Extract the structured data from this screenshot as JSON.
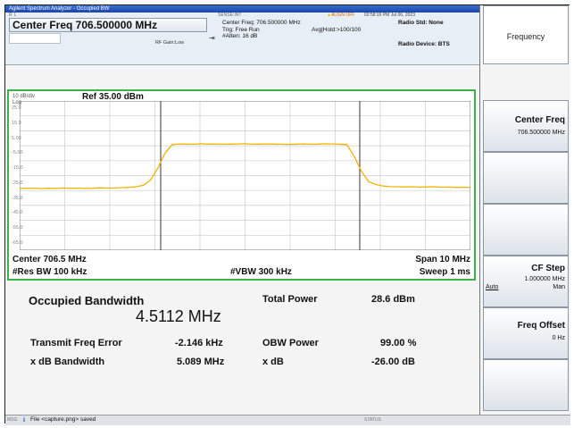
{
  "titlebar": {
    "text": "Agilent Spectrum Analyzer - Occupied BW"
  },
  "header": {
    "tiny_left": "RL",
    "tiny_mid": "SENSE:INT",
    "alert": "ALIGN OFF",
    "datetime": "02:58:16 PM Jul 06, 2023",
    "center_freq_display": "Center Freq 706.500000 MHz",
    "rf_gain": "RF Gain:Low",
    "center_freq_small": "Center Freq: 706.500000 MHz",
    "trig": "Trig: Free Run",
    "avg_hold": "Avg|Hold:>100/100",
    "atten": "#Atten: 16 dB",
    "radio_std": "Radio Std: None",
    "radio_device": "Radio Device: BTS"
  },
  "graph": {
    "scale": "10 dB/div",
    "ref": "Ref 35.00 dBm",
    "log": "Log",
    "y_ticks": [
      "25.0",
      "15.0",
      "5.00",
      "-5.00",
      "-15.0",
      "-25.0",
      "-35.0",
      "-45.0",
      "-55.0",
      "-65.0"
    ],
    "center": "Center  706.5 MHz",
    "span": "Span 10 MHz",
    "res_bw": "#Res BW  100 kHz",
    "vbw": "#VBW  300 kHz",
    "sweep": "Sweep  1 ms",
    "trace_color": "#f0b400",
    "trace_db": [
      -23.5,
      -23.6,
      -23.4,
      -23.7,
      -23.5,
      -23.6,
      -23.3,
      -23.5,
      -23.4,
      -23.6,
      -23.5,
      -23.2,
      -23.4,
      -23.3,
      -23.1,
      -22.9,
      -22.5,
      -21.5,
      -18,
      -10,
      0,
      5.8,
      6.2,
      6.1,
      6.0,
      6.3,
      6.1,
      6.2,
      6.0,
      6.1,
      6.2,
      6.3,
      6.0,
      6.1,
      6.2,
      6.1,
      6.0,
      5.9,
      6.1,
      6.2,
      6.0,
      6.1,
      6.3,
      6.2,
      6.0,
      5.8,
      -2,
      -12,
      -19,
      -21,
      -22,
      -22.4,
      -22.5,
      -22.6,
      -22.5,
      -22.7,
      -22.6,
      -22.5,
      -22.8,
      -22.7,
      -22.9,
      -22.8,
      -23.0
    ]
  },
  "results": {
    "obw_title": "Occupied Bandwidth",
    "obw_value": "4.5112 MHz",
    "total_power_label": "Total Power",
    "total_power_value": "28.6 dBm",
    "tfe_label": "Transmit Freq Error",
    "tfe_value": "-2.146 kHz",
    "obw_power_label": "OBW Power",
    "obw_power_value": "99.00 %",
    "xdb_bw_label": "x dB Bandwidth",
    "xdb_bw_value": "5.089 MHz",
    "xdb_label": "x dB",
    "xdb_value": "-26.00 dB"
  },
  "status": {
    "left_small": "MSG",
    "message": "File <capture.png> saved",
    "mid_small": "STATUS"
  },
  "softkeys": {
    "menu_title": "Frequency",
    "center_freq_label": "Center Freq",
    "center_freq_value": "706.500000 MHz",
    "cf_step_label": "CF Step",
    "cf_step_value": "1.000000 MHz",
    "cf_step_auto": "Auto",
    "cf_step_man": "Man",
    "freq_offset_label": "Freq Offset",
    "freq_offset_value": "0 Hz"
  }
}
